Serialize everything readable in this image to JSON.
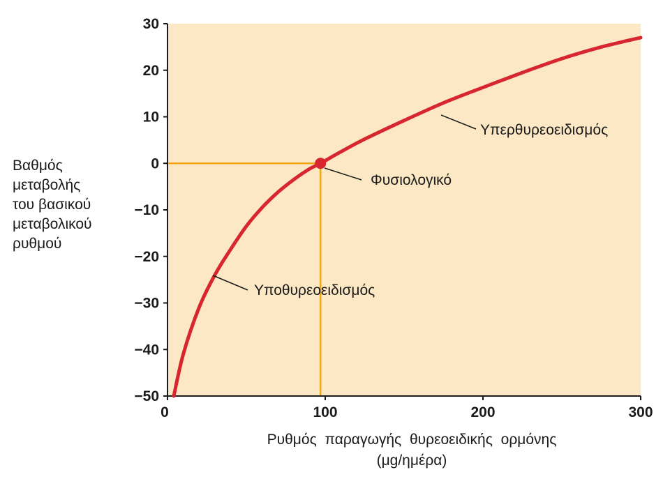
{
  "chart_data": {
    "type": "line",
    "xlabel_lines": [
      "Ρυθμός παραγωγής θυρεοειδικής ορμόνης",
      "(μg/ημέρα)"
    ],
    "ylabel_lines": [
      "Βαθμός",
      "μεταβολής",
      "του βασικού",
      "μεταβολικού",
      "ρυθμού"
    ],
    "xlim": [
      0,
      300
    ],
    "ylim": [
      -50,
      30
    ],
    "x_ticks": [
      0,
      100,
      200,
      300
    ],
    "x_tick_labels": [
      "0",
      "100",
      "200",
      "300"
    ],
    "y_ticks": [
      30,
      20,
      10,
      0,
      -10,
      -20,
      -30,
      -40,
      -50
    ],
    "y_tick_labels": [
      "30",
      "20",
      "10",
      "0",
      "−10",
      "−20",
      "−30",
      "−40",
      "−50"
    ],
    "series": [
      {
        "x": [
          4,
          10,
          20,
          30,
          40,
          50,
          60,
          70,
          80,
          90,
          97,
          110,
          125,
          150,
          175,
          200,
          225,
          250,
          275,
          300
        ],
        "y": [
          -50,
          -41,
          -31,
          -24,
          -18.5,
          -13.5,
          -9.5,
          -6.2,
          -3.5,
          -1.2,
          0,
          2.5,
          5.2,
          9.2,
          13,
          16.3,
          19.5,
          22.5,
          25,
          27
        ],
        "color": "#d7262f"
      }
    ],
    "marker": {
      "x": 97,
      "y": 0,
      "color": "#d7262f"
    },
    "reference_lines": {
      "x": 97,
      "y": 0,
      "color": "#f0a817"
    },
    "annotations": [
      {
        "text": "Υπερθυρεοειδισμός",
        "x": 175,
        "y": 12
      },
      {
        "text": "Φυσιολογικό",
        "x": 100,
        "y": 0
      },
      {
        "text": "Υποθυρεοειδισμός",
        "x": 30,
        "y": -24
      }
    ],
    "background_color": "#fce8c4",
    "grid": false
  }
}
